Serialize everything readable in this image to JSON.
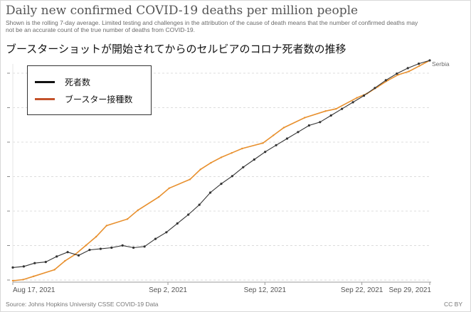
{
  "header": {
    "title": "Daily new confirmed COVID-19 deaths per million people",
    "subtitle": "Shown is the rolling 7-day average. Limited testing and challenges in the attribution of the cause of death means that the number of confirmed deaths may not be an accurate count of the true number of deaths from COVID-19.",
    "jp_heading": "ブースターショットが開始されてからのセルビアのコロナ死者数の推移"
  },
  "footer": {
    "source": "Source: Johns Hopkins University CSSE COVID-19 Data",
    "license": "CC BY"
  },
  "legend": {
    "items": [
      {
        "label": "死者数",
        "color": "#111111"
      },
      {
        "label": "ブースター接種数",
        "color": "#c4522b"
      }
    ]
  },
  "chart_data": {
    "type": "line",
    "xlabel": "",
    "ylabel": "",
    "x_ticks": [
      {
        "label": "Aug 17, 2021",
        "day": 0
      },
      {
        "label": "Sep 2, 2021",
        "day": 16
      },
      {
        "label": "Sep 12, 2021",
        "day": 26
      },
      {
        "label": "Sep 22, 2021",
        "day": 36
      },
      {
        "label": "Sep 29, 2021",
        "day": 43
      }
    ],
    "y_gridlines": 7,
    "end_label": "Serbia",
    "series": [
      {
        "name": "死者数",
        "color": "#333333",
        "marker": "dot",
        "points": [
          [
            0,
            0.06
          ],
          [
            1,
            0.065
          ],
          [
            2,
            0.08
          ],
          [
            3,
            0.085
          ],
          [
            4,
            0.11
          ],
          [
            5,
            0.13
          ],
          [
            6,
            0.115
          ],
          [
            7,
            0.14
          ],
          [
            8,
            0.145
          ],
          [
            9,
            0.15
          ],
          [
            10,
            0.16
          ],
          [
            11,
            0.15
          ],
          [
            12,
            0.155
          ],
          [
            13,
            0.19
          ],
          [
            14,
            0.22
          ],
          [
            15,
            0.26
          ],
          [
            16,
            0.3
          ],
          [
            17,
            0.345
          ],
          [
            18,
            0.4
          ],
          [
            19,
            0.44
          ],
          [
            20,
            0.475
          ],
          [
            21,
            0.515
          ],
          [
            22,
            0.55
          ],
          [
            23,
            0.585
          ],
          [
            24,
            0.615
          ],
          [
            25,
            0.645
          ],
          [
            26,
            0.675
          ],
          [
            27,
            0.705
          ],
          [
            28,
            0.72
          ],
          [
            29,
            0.75
          ],
          [
            30,
            0.78
          ],
          [
            31,
            0.81
          ],
          [
            32,
            0.84
          ],
          [
            33,
            0.875
          ],
          [
            34,
            0.91
          ],
          [
            35,
            0.94
          ],
          [
            36,
            0.965
          ],
          [
            37,
            0.985
          ],
          [
            38,
            1.0
          ]
        ]
      },
      {
        "name": "ブースター接種数",
        "color": "#e8902e",
        "marker": "line",
        "points": [
          [
            0,
            0.0
          ],
          [
            1,
            0.005
          ],
          [
            2,
            0.02
          ],
          [
            4,
            0.05
          ],
          [
            5,
            0.09
          ],
          [
            6,
            0.12
          ],
          [
            7,
            0.16
          ],
          [
            8,
            0.2
          ],
          [
            9,
            0.25
          ],
          [
            11,
            0.28
          ],
          [
            12,
            0.32
          ],
          [
            14,
            0.38
          ],
          [
            15,
            0.42
          ],
          [
            17,
            0.46
          ],
          [
            18,
            0.505
          ],
          [
            19,
            0.535
          ],
          [
            20,
            0.56
          ],
          [
            21,
            0.58
          ],
          [
            22,
            0.6
          ],
          [
            24,
            0.625
          ],
          [
            25,
            0.66
          ],
          [
            26,
            0.695
          ],
          [
            28,
            0.74
          ],
          [
            30,
            0.77
          ],
          [
            31,
            0.78
          ],
          [
            33,
            0.83
          ],
          [
            34,
            0.85
          ],
          [
            35,
            0.88
          ],
          [
            36,
            0.91
          ],
          [
            37,
            0.935
          ],
          [
            38,
            0.95
          ],
          [
            39,
            0.975
          ],
          [
            40,
            1.0
          ]
        ]
      }
    ]
  }
}
